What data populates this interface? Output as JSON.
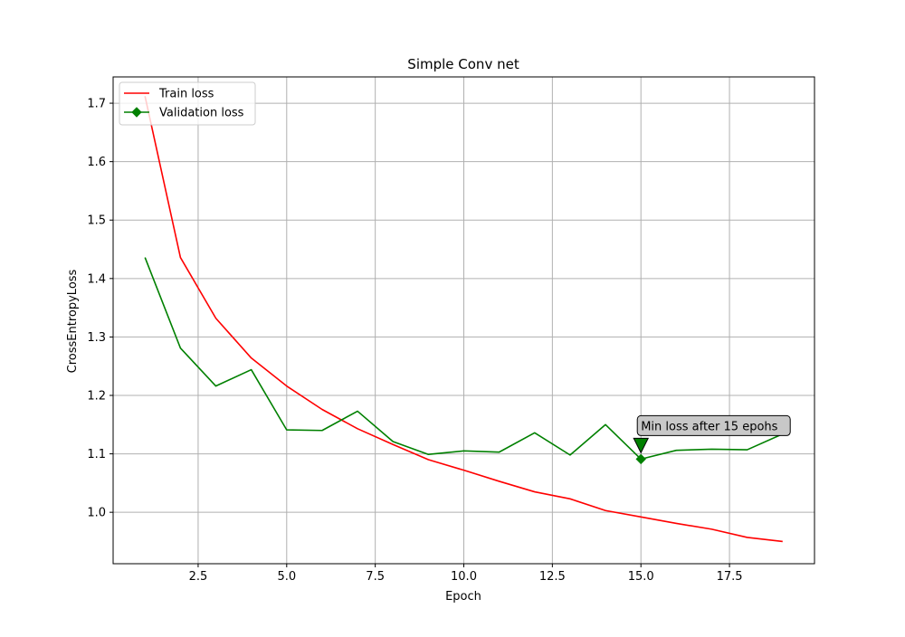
{
  "chart_data": {
    "type": "line",
    "title": "Simple Conv net",
    "xlabel": "Epoch",
    "ylabel": "CrossEntropyLoss",
    "xlim": [
      0.1,
      19.9
    ],
    "ylim": [
      0.912,
      1.745
    ],
    "grid": true,
    "legend_position": "top-left",
    "xticks": [
      2.5,
      5.0,
      7.5,
      10.0,
      12.5,
      15.0,
      17.5
    ],
    "xtick_labels": [
      "2.5",
      "5.0",
      "7.5",
      "10.0",
      "12.5",
      "15.0",
      "17.5"
    ],
    "yticks": [
      1.0,
      1.1,
      1.2,
      1.3,
      1.4,
      1.5,
      1.6,
      1.7
    ],
    "ytick_labels": [
      "1.0",
      "1.1",
      "1.2",
      "1.3",
      "1.4",
      "1.5",
      "1.6",
      "1.7"
    ],
    "series": [
      {
        "name": "Train loss",
        "color": "#ff0000",
        "marker": "none",
        "x": [
          1,
          2,
          3,
          4,
          5,
          6,
          7,
          8,
          9,
          10,
          11,
          12,
          13,
          14,
          15,
          16,
          17,
          18,
          19
        ],
        "y": [
          1.712,
          1.436,
          1.332,
          1.264,
          1.216,
          1.176,
          1.143,
          1.116,
          1.09,
          1.072,
          1.053,
          1.035,
          1.023,
          1.003,
          0.992,
          0.981,
          0.971,
          0.957,
          0.95
        ]
      },
      {
        "name": "Validation loss",
        "color": "#008000",
        "marker": "diamond",
        "markevery": [
          15
        ],
        "x": [
          1,
          2,
          3,
          4,
          5,
          6,
          7,
          8,
          9,
          10,
          11,
          12,
          13,
          14,
          15,
          16,
          17,
          18,
          19
        ],
        "y": [
          1.436,
          1.281,
          1.216,
          1.244,
          1.141,
          1.14,
          1.173,
          1.121,
          1.099,
          1.105,
          1.103,
          1.136,
          1.098,
          1.15,
          1.091,
          1.106,
          1.108,
          1.107,
          1.134
        ]
      }
    ],
    "annotation": {
      "text": "Min loss after 15 epohs",
      "x": 15,
      "y": 1.091,
      "arrow_color": "#008000",
      "box_color": "#c8c8c8"
    }
  }
}
